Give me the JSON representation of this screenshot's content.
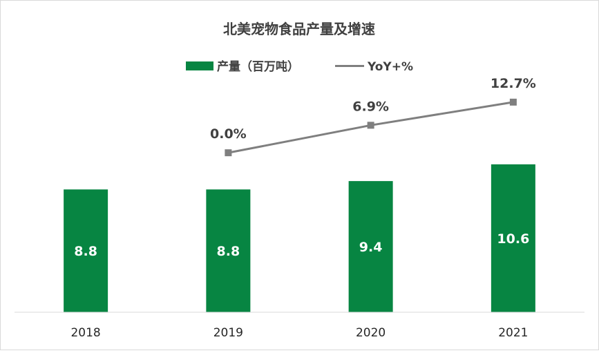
{
  "chart_data": {
    "type": "bar",
    "title": "北美宠物食品产量及增速",
    "categories": [
      "2018",
      "2019",
      "2020",
      "2021"
    ],
    "series": [
      {
        "name": "产量（百万吨）",
        "type": "bar",
        "values": [
          8.8,
          8.8,
          9.4,
          10.6
        ],
        "labels": [
          "8.8",
          "8.8",
          "9.4",
          "10.6"
        ],
        "color": "#078542"
      },
      {
        "name": "YoY+%",
        "type": "line",
        "values": [
          null,
          0.0,
          6.9,
          12.7
        ],
        "labels": [
          "",
          "0.0%",
          "6.9%",
          "12.7%"
        ],
        "color": "#7f7f7f"
      }
    ],
    "ylim": [
      0,
      20
    ],
    "y2lim": [
      -40,
      30
    ],
    "grid": false,
    "legend_position": "top"
  }
}
